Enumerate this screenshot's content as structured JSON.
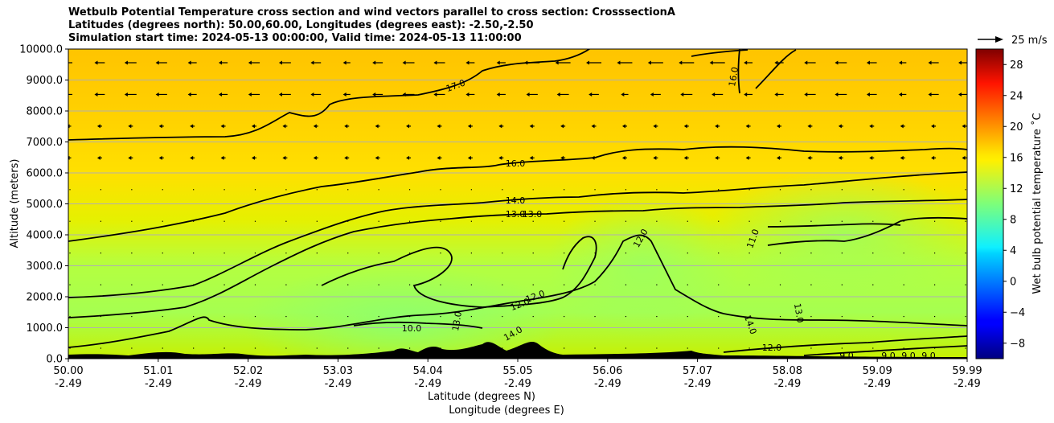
{
  "chart_data": {
    "type": "contour",
    "title_lines": [
      "Wetbulb Potential Temperature cross section and wind vectors parallel to cross section: CrosssectionA",
      "Latitudes (degrees north): 50.00,60.00, Longitudes (degrees east): -2.50,-2.50",
      "Simulation start time: 2024-05-13 00:00:00, Valid time: 2024-05-13 11:00:00"
    ],
    "xlabel_lat": "Latitude (degrees N)",
    "xlabel_lon": "Longitude (degrees E)",
    "ylabel": "Altitude (meters)",
    "ylim": [
      0,
      10000
    ],
    "y_ticks": [
      "0.0",
      "1000.0",
      "2000.0",
      "3000.0",
      "4000.0",
      "5000.0",
      "6000.0",
      "7000.0",
      "8000.0",
      "9000.0",
      "10000.0"
    ],
    "x_ticks_lat": [
      "50.00",
      "51.01",
      "52.02",
      "53.03",
      "54.04",
      "55.05",
      "56.06",
      "57.07",
      "58.08",
      "59.09",
      "59.99"
    ],
    "x_ticks_lon": [
      "-2.49",
      "-2.49",
      "-2.49",
      "-2.49",
      "-2.49",
      "-2.49",
      "-2.49",
      "-2.49",
      "-2.49",
      "-2.49",
      "-2.49"
    ],
    "grid": "horizontal",
    "quiver_key_label": "25 m/s",
    "colorbar": {
      "label": "Wet bulb potential temperature ˚C",
      "range": [
        -10,
        30
      ],
      "ticks": [
        "−8",
        "−4",
        "0",
        "4",
        "8",
        "12",
        "16",
        "20",
        "24",
        "28"
      ],
      "colormap": "jet"
    },
    "contour_labels": [
      "17.0",
      "16.0",
      "16.0",
      "14.0",
      "13.0",
      "13.0",
      "12.0",
      "11.0",
      "12.0",
      "12.0",
      "10.0",
      "14.0",
      "13.0",
      "13.0",
      "14.0",
      "12.0",
      "9.0",
      "9.0",
      "9.0",
      "9.0"
    ]
  }
}
